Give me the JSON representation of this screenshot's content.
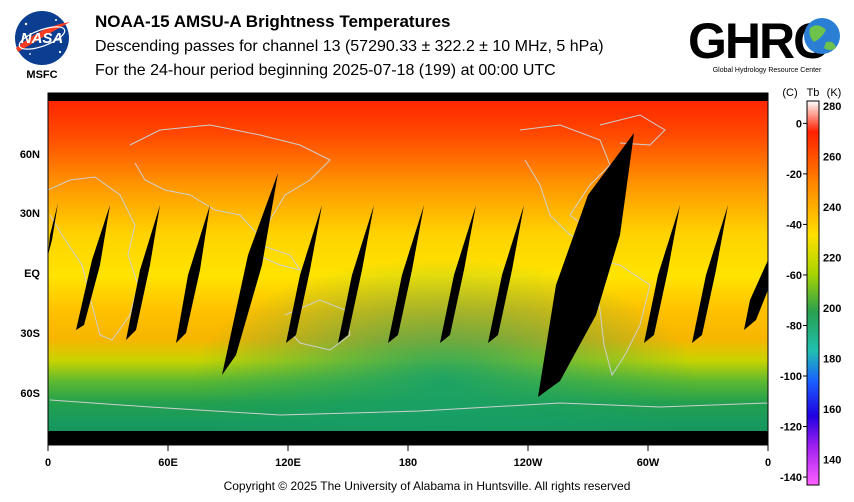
{
  "header": {
    "title": "NOAA-15 AMSU-A Brightness Temperatures",
    "subtitle_line1": "Descending passes for channel 13 (57290.33 ± 322.2 ± 10 MHz, 5 hPa)",
    "subtitle_line2": "For the 24-hour period beginning 2025-07-18 (199) at 00:00 UTC"
  },
  "logos": {
    "nasa_text": "NASA",
    "msfc_text": "MSFC",
    "ghrc_text": "GHRC",
    "ghrc_caption": "Global Hydrology Resource Center"
  },
  "map": {
    "lat_labels": [
      "60N",
      "30N",
      "EQ",
      "30S",
      "60S"
    ],
    "lon_labels": [
      "0",
      "60E",
      "120E",
      "180",
      "120W",
      "60W",
      "0"
    ]
  },
  "colorbar": {
    "celsius_header": "(C)",
    "tb_header": "Tb",
    "kelvin_header": "(K)",
    "celsius_ticks": [
      "0",
      "-20",
      "-40",
      "-60",
      "-80",
      "-100",
      "-120",
      "-140"
    ],
    "kelvin_ticks": [
      "280",
      "260",
      "240",
      "220",
      "200",
      "180",
      "160",
      "140"
    ]
  },
  "footer": {
    "copyright": "Copyright © 2025 The University of Alabama in Huntsville.  All rights reserved"
  },
  "colors": {
    "swath_gap": "#000000",
    "coastline": "#c8c8c8",
    "warm": "#ff2a00",
    "mid": "#ffd800",
    "cool": "#1aa050"
  }
}
